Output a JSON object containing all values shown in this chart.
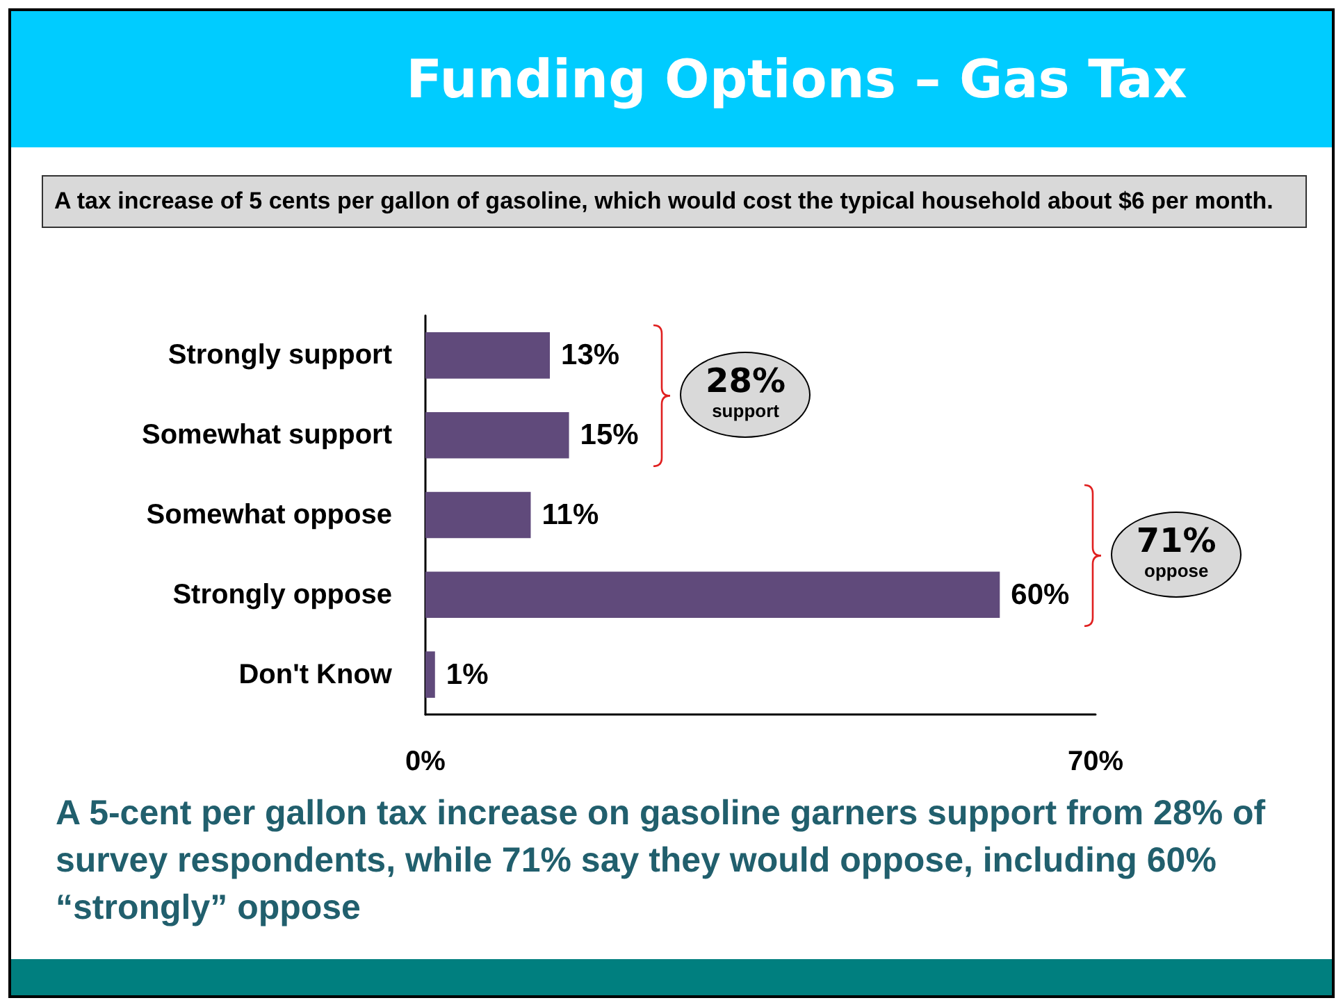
{
  "chart_data": {
    "type": "bar",
    "orientation": "horizontal",
    "title": "Funding Options – Gas Tax",
    "subtitle": "A tax increase of 5 cents per gallon of gasoline, which would cost the typical household about $6 per month.",
    "categories": [
      "Strongly support",
      "Somewhat support",
      "Somewhat oppose",
      "Strongly oppose",
      "Don't Know"
    ],
    "values": [
      13,
      15,
      11,
      60,
      1
    ],
    "value_labels": [
      "13%",
      "15%",
      "11%",
      "60%",
      "1%"
    ],
    "color": "#604a7b",
    "xlim": [
      0,
      70
    ],
    "xticks": [
      {
        "value": 0,
        "label": "0%"
      },
      {
        "value": 70,
        "label": "70%"
      }
    ],
    "grid": false,
    "annotations": [
      "28%\nsupport",
      "71%\noppose",
      "A 5-cent per gallon tax increase on gasoline garners support from 28% of survey respondents, while 71% say they would oppose, including 60% “strongly” oppose"
    ]
  }
}
